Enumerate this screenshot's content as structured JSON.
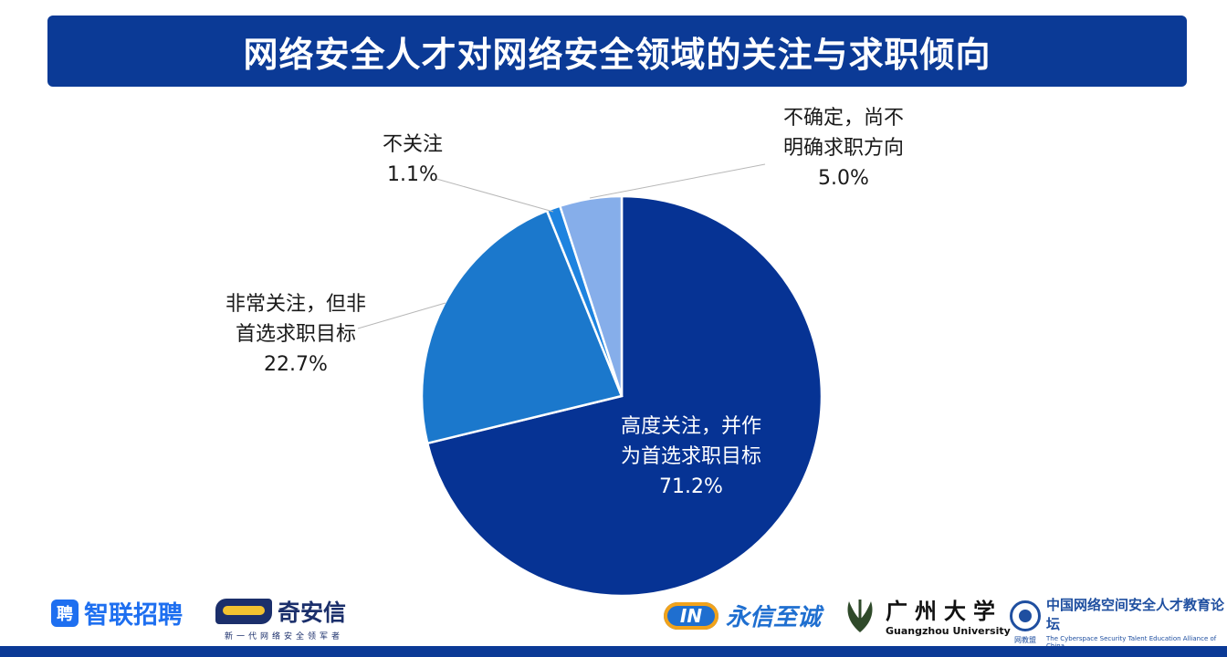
{
  "title": "网络安全人才对网络安全领域的关注与求职倾向",
  "chart_data": {
    "type": "pie",
    "slices": [
      {
        "label_line1": "高度关注，并作",
        "label_line2": "为首选求职目标",
        "value": 71.2,
        "value_label": "71.2%",
        "color": "#063394"
      },
      {
        "label_line1": "非常关注，但非",
        "label_line2": "首选求职目标",
        "value": 22.7,
        "value_label": "22.7%",
        "color": "#1b78cc"
      },
      {
        "label_line1": "不关注",
        "label_line2": "",
        "value": 1.1,
        "value_label": "1.1%",
        "color": "#1e83df"
      },
      {
        "label_line1": "不确定，尚不",
        "label_line2": "明确求职方向",
        "value": 5.0,
        "value_label": "5.0%",
        "color": "#86aeea"
      }
    ],
    "start_angle_deg": 0,
    "direction": "clockwise"
  },
  "logos": {
    "zhilian": {
      "badge": "聘",
      "text": "智联招聘"
    },
    "qianxin": {
      "text": "奇安信",
      "sub": "新一代网络安全领军者"
    },
    "yongxin": {
      "mark": "IN",
      "text": "永信至诚"
    },
    "gzhu": {
      "cn": "广州大学",
      "en": "Guangzhou University"
    },
    "alliance": {
      "cn": "中国网络空间安全人才教育论坛",
      "en": "The Cyberspace Security Talent Education Alliance of China",
      "tag": "网教盟"
    }
  }
}
